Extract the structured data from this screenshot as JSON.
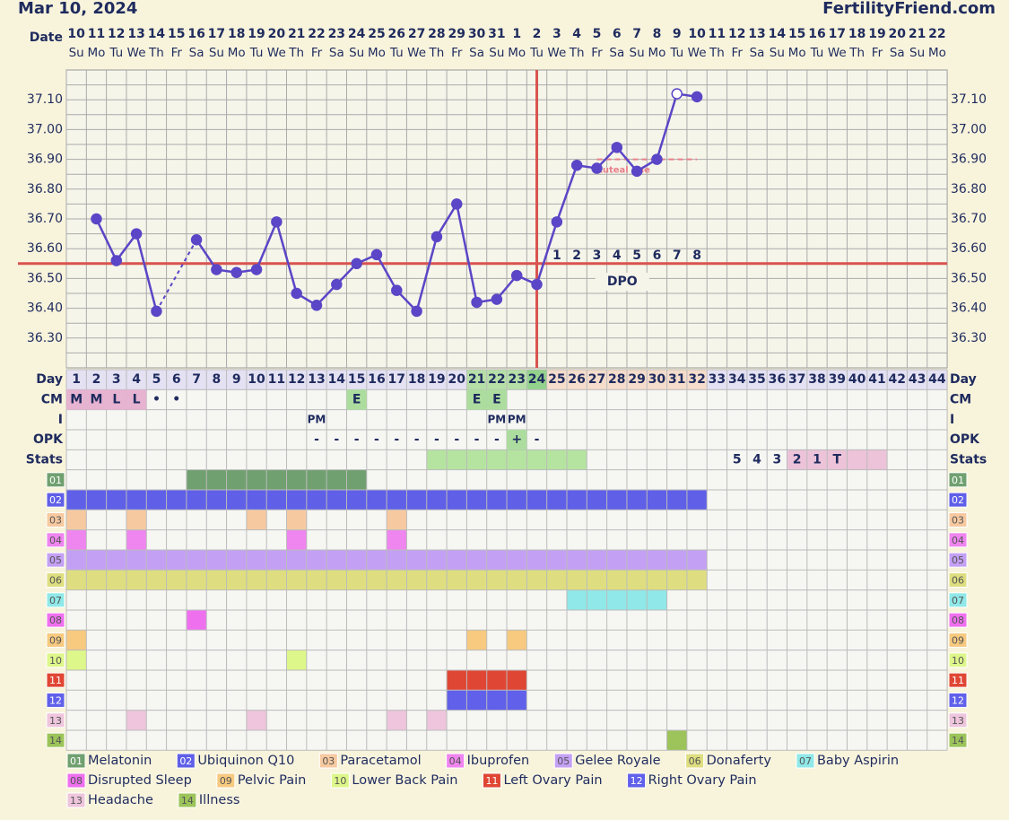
{
  "header": {
    "date": "Mar 10, 2024",
    "site": "FertilityFriend.com"
  },
  "chart_data": {
    "type": "line",
    "x_label": "Date",
    "categories": [
      10,
      11,
      12,
      13,
      14,
      15,
      16,
      17,
      18,
      19,
      20,
      21,
      22,
      23,
      24,
      25,
      26,
      27,
      28,
      29,
      30,
      31,
      1,
      2,
      3,
      4,
      5,
      6,
      7,
      8,
      9,
      10,
      11,
      12,
      13,
      14,
      15,
      16,
      17,
      18,
      19,
      20,
      21,
      22
    ],
    "weekdays": [
      "Su",
      "Mo",
      "Tu",
      "We",
      "Th",
      "Fr",
      "Sa",
      "Su",
      "Mo",
      "Tu",
      "We",
      "Th",
      "Fr",
      "Sa",
      "Su",
      "Mo",
      "Tu",
      "We",
      "Th",
      "Fr",
      "Sa",
      "Su",
      "Mo",
      "Tu",
      "We",
      "Th",
      "Fr",
      "Sa",
      "Su",
      "Mo",
      "Tu",
      "We",
      "Th",
      "Fr",
      "Sa",
      "Su",
      "Mo",
      "Tu",
      "We",
      "Th",
      "Fr",
      "Sa",
      "Su",
      "Mo"
    ],
    "values": [
      null,
      36.7,
      36.56,
      36.65,
      36.39,
      null,
      36.63,
      36.53,
      36.52,
      36.53,
      36.69,
      36.45,
      36.41,
      36.48,
      36.55,
      36.58,
      36.46,
      36.39,
      36.64,
      36.75,
      36.42,
      36.43,
      36.51,
      36.48,
      36.69,
      36.88,
      36.87,
      36.94,
      36.86,
      36.9,
      37.12,
      37.11,
      null,
      null,
      null,
      null,
      null,
      null,
      null,
      null,
      null,
      null,
      null,
      null
    ],
    "open_point_days": [
      31
    ],
    "color": "#5a46c6",
    "ylim": [
      36.2,
      37.2
    ],
    "yticks": [
      {
        "value": 36.3,
        "label": "36.30"
      },
      {
        "value": 36.4,
        "label": "36.40"
      },
      {
        "value": 36.5,
        "label": "36.50"
      },
      {
        "value": 36.6,
        "label": "36.60"
      },
      {
        "value": 36.7,
        "label": "36.70"
      },
      {
        "value": 36.8,
        "label": "36.80"
      },
      {
        "value": 36.9,
        "label": "36.90"
      },
      {
        "value": 37.0,
        "label": "37.00"
      },
      {
        "value": 37.1,
        "label": "37.10"
      }
    ],
    "grid": true,
    "coverline": 36.55,
    "coverline_color": "#d9534f",
    "ovulation_day": 24,
    "dpo": [
      1,
      2,
      3,
      4,
      5,
      6,
      7,
      8
    ],
    "dpo_label": "DPO",
    "luteal_line": {
      "label": "Luteal line",
      "value": 36.9,
      "color": "#e8808a"
    }
  },
  "table": {
    "labels": {
      "day": "Day",
      "cm": "CM",
      "i": "I",
      "opk": "OPK",
      "stats": "Stats"
    },
    "days": [
      1,
      2,
      3,
      4,
      5,
      6,
      7,
      8,
      9,
      10,
      11,
      12,
      13,
      14,
      15,
      16,
      17,
      18,
      19,
      20,
      21,
      22,
      23,
      24,
      25,
      26,
      27,
      28,
      29,
      30,
      31,
      32,
      33,
      34,
      35,
      36,
      37,
      38,
      39,
      40,
      41,
      42,
      43,
      44
    ],
    "day_color": "#e4e1f3",
    "day_highlights": [
      {
        "from": 21,
        "to": 23,
        "color": "#b6dfa7"
      },
      {
        "from": 24,
        "to": 24,
        "color": "#93d28c"
      },
      {
        "from": 25,
        "to": 32,
        "color": "#f5dccb"
      }
    ],
    "cell_colors": {
      "M": "#e6b3d1",
      "L": "#e6b3d1",
      "E": "#acdd9f",
      "+": "#acdd9f"
    },
    "cm": [
      {
        "day": 1,
        "text": "M"
      },
      {
        "day": 2,
        "text": "M"
      },
      {
        "day": 3,
        "text": "L"
      },
      {
        "day": 4,
        "text": "L"
      },
      {
        "day": 5,
        "text": "•"
      },
      {
        "day": 6,
        "text": "•"
      },
      {
        "day": 15,
        "text": "E"
      },
      {
        "day": 21,
        "text": "E"
      },
      {
        "day": 22,
        "text": "E"
      }
    ],
    "i": [
      {
        "day": 13,
        "text": "PM"
      },
      {
        "day": 22,
        "text": "PM"
      },
      {
        "day": 23,
        "text": "PM"
      }
    ],
    "opk": [
      {
        "day": 13,
        "text": "-"
      },
      {
        "day": 14,
        "text": "-"
      },
      {
        "day": 15,
        "text": "-"
      },
      {
        "day": 16,
        "text": "-"
      },
      {
        "day": 17,
        "text": "-"
      },
      {
        "day": 18,
        "text": "-"
      },
      {
        "day": 19,
        "text": "-"
      },
      {
        "day": 20,
        "text": "-"
      },
      {
        "day": 21,
        "text": "-"
      },
      {
        "day": 22,
        "text": "-"
      },
      {
        "day": 23,
        "text": "+"
      },
      {
        "day": 24,
        "text": "-"
      }
    ],
    "stats": {
      "spans": [
        {
          "from": 19,
          "to": 26,
          "color": "#b5e3a0"
        },
        {
          "from": 37,
          "to": 41,
          "color": "#ecc3d8"
        }
      ],
      "marks": [
        {
          "day": 34,
          "text": "5"
        },
        {
          "day": 35,
          "text": "4"
        },
        {
          "day": 36,
          "text": "3"
        },
        {
          "day": 37,
          "text": "2"
        },
        {
          "day": 38,
          "text": "1"
        },
        {
          "day": 39,
          "text": "T"
        }
      ]
    },
    "items": [
      {
        "code": "01",
        "name": "Melatonin",
        "color": "#70a070",
        "spans": [
          [
            7,
            15
          ]
        ]
      },
      {
        "code": "02",
        "name": "Ubiquinon Q10",
        "color": "#5f5fe8",
        "spans": [
          [
            1,
            32
          ]
        ]
      },
      {
        "code": "03",
        "name": "Paracetamol",
        "color": "#f7c9a0",
        "spans": [
          [
            1,
            1
          ],
          [
            4,
            4
          ],
          [
            10,
            10
          ],
          [
            12,
            12
          ],
          [
            17,
            17
          ]
        ]
      },
      {
        "code": "04",
        "name": "Ibuprofen",
        "color": "#ef85ef",
        "spans": [
          [
            1,
            1
          ],
          [
            4,
            4
          ],
          [
            12,
            12
          ],
          [
            17,
            17
          ]
        ]
      },
      {
        "code": "05",
        "name": "Gelee Royale",
        "color": "#c4a0f5",
        "spans": [
          [
            1,
            32
          ]
        ]
      },
      {
        "code": "06",
        "name": "Donaferty",
        "color": "#dede80",
        "spans": [
          [
            1,
            32
          ]
        ]
      },
      {
        "code": "07",
        "name": "Baby Aspirin",
        "color": "#90e8e8",
        "spans": [
          [
            26,
            30
          ]
        ]
      },
      {
        "code": "08",
        "name": "Disrupted Sleep",
        "color": "#ef70ef",
        "spans": [
          [
            7,
            7
          ]
        ]
      },
      {
        "code": "09",
        "name": "Pelvic Pain",
        "color": "#f7ca80",
        "spans": [
          [
            1,
            1
          ],
          [
            21,
            21
          ],
          [
            23,
            23
          ]
        ]
      },
      {
        "code": "10",
        "name": "Lower Back Pain",
        "color": "#def78a",
        "spans": [
          [
            1,
            1
          ],
          [
            12,
            12
          ]
        ]
      },
      {
        "code": "11",
        "name": "Left Ovary Pain",
        "color": "#e04634",
        "spans": [
          [
            20,
            23
          ]
        ]
      },
      {
        "code": "12",
        "name": "Right Ovary Pain",
        "color": "#6060ea",
        "spans": [
          [
            20,
            23
          ]
        ]
      },
      {
        "code": "13",
        "name": "Headache",
        "color": "#eec5dc",
        "spans": [
          [
            4,
            4
          ],
          [
            10,
            10
          ],
          [
            17,
            17
          ],
          [
            19,
            19
          ]
        ]
      },
      {
        "code": "14",
        "name": "Illness",
        "color": "#9cc45a",
        "spans": [
          [
            31,
            31
          ]
        ]
      }
    ]
  }
}
